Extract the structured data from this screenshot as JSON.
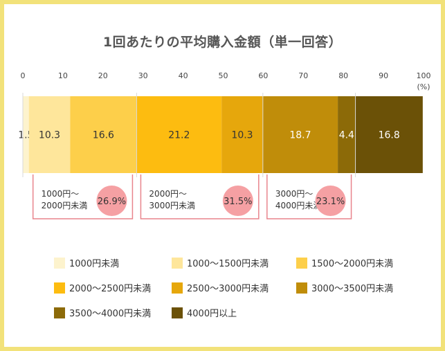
{
  "chart_data": {
    "type": "stacked-bar",
    "title": "1回あたりの平均購入金額（単一回答）",
    "x_unit": "(%)",
    "xlim": [
      0,
      100
    ],
    "x_ticks": [
      0,
      10,
      20,
      30,
      40,
      50,
      60,
      70,
      80,
      90,
      100
    ],
    "grid": false,
    "legend_position": "bottom",
    "series": [
      {
        "name": "1000円未満",
        "value": 1.5,
        "color": "#fdf3cd"
      },
      {
        "name": "1000〜1500円未満",
        "value": 10.3,
        "color": "#fee69b"
      },
      {
        "name": "1500〜2000円未満",
        "value": 16.6,
        "color": "#fdcf4a"
      },
      {
        "name": "2000〜2500円未満",
        "value": 21.2,
        "color": "#fdbc10"
      },
      {
        "name": "2500〜3000円未満",
        "value": 10.3,
        "color": "#e6a70c"
      },
      {
        "name": "3000〜3500円未満",
        "value": 18.7,
        "color": "#c08d0a"
      },
      {
        "name": "3500〜4000円未満",
        "value": 4.4,
        "color": "#8c6a08"
      },
      {
        "name": "4000円以上",
        "value": 16.8,
        "color": "#6b5107"
      }
    ],
    "groups": [
      {
        "label_line1": "1000円〜",
        "label_line2": "2000円未満",
        "value": "26.9%",
        "from": 1,
        "to": 2
      },
      {
        "label_line1": "2000円〜",
        "label_line2": "3000円未満",
        "value": "31.5%",
        "from": 3,
        "to": 4
      },
      {
        "label_line1": "3000円〜",
        "label_line2": "4000円未満",
        "value": "23.1%",
        "from": 5,
        "to": 6
      }
    ]
  }
}
